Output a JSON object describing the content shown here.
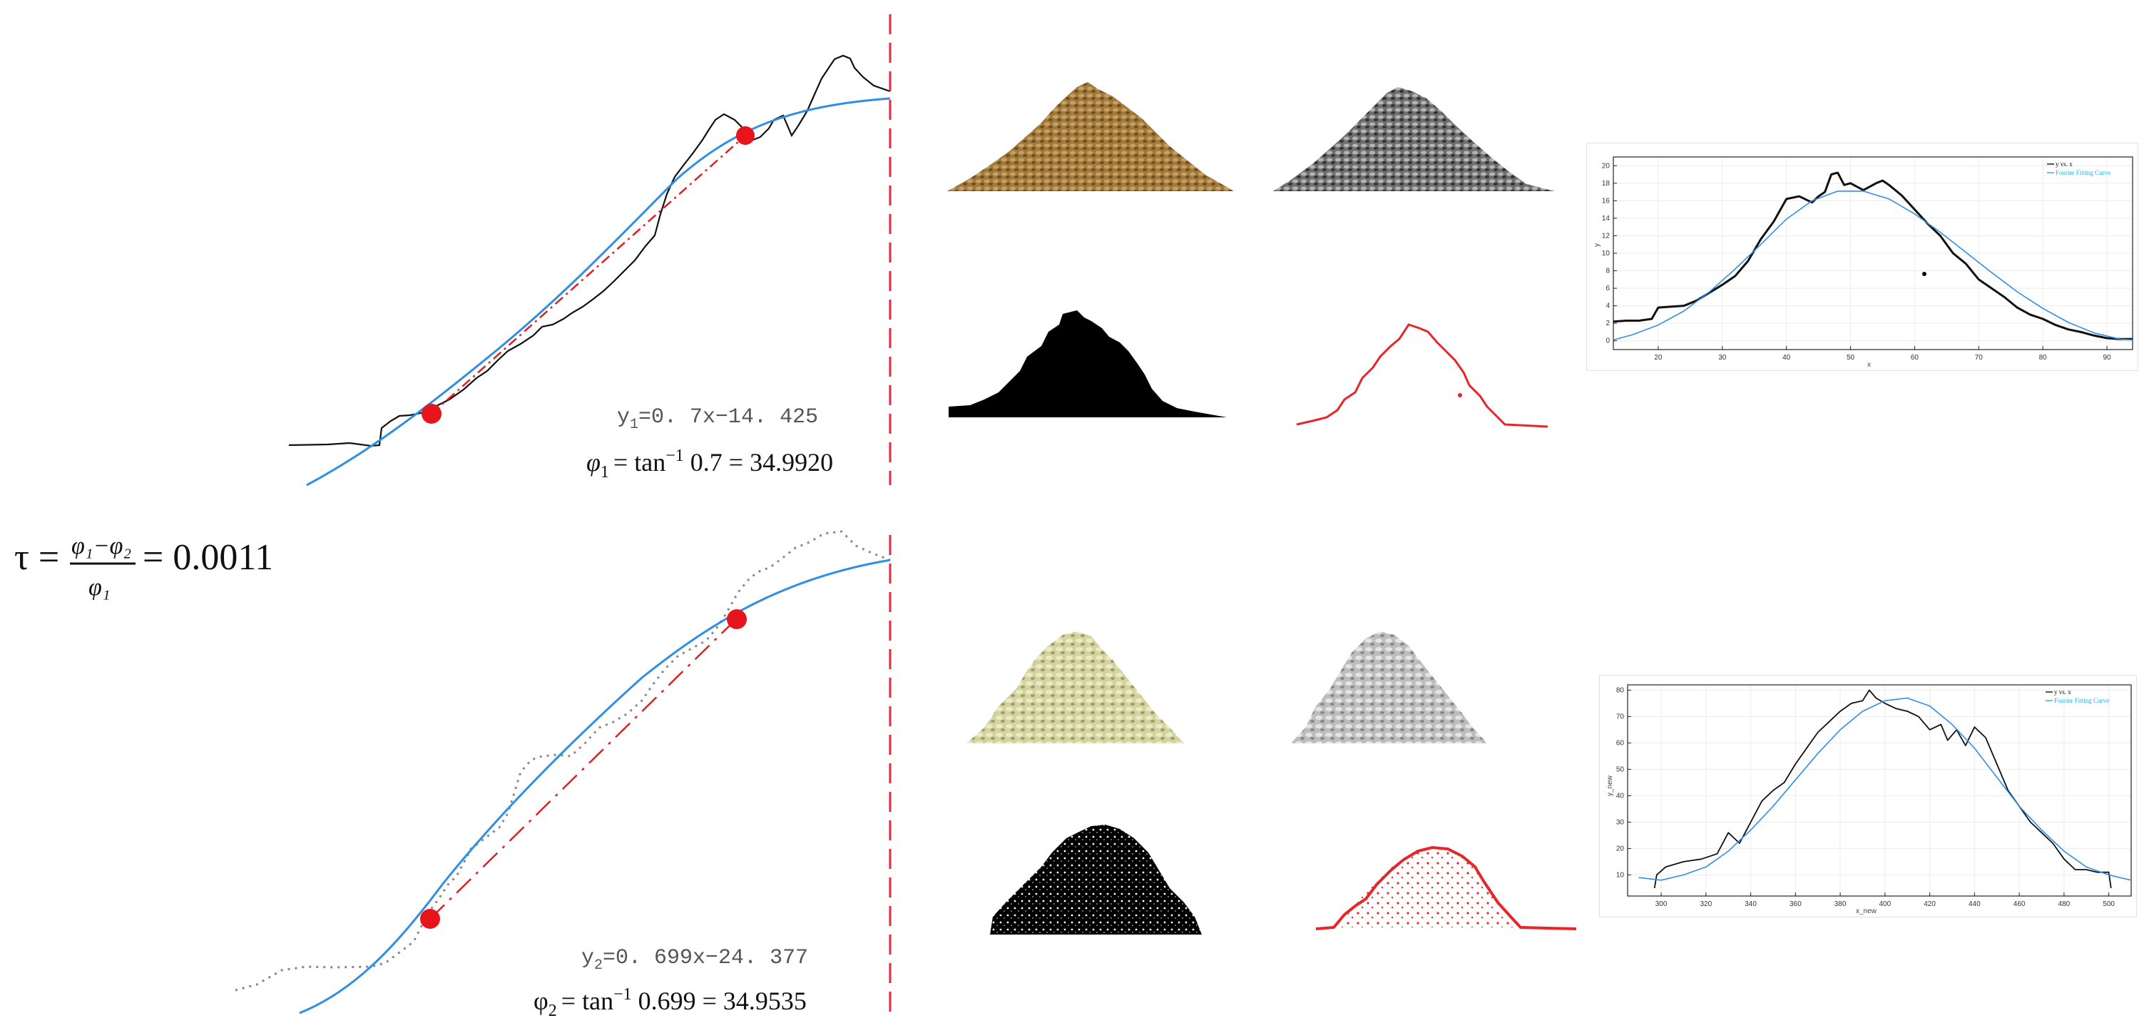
{
  "equations": {
    "top_fit": {
      "lhs": "y",
      "sub": "1",
      "rhs": "=0. 7x−14. 425"
    },
    "top_angle": {
      "phi": "φ",
      "sub": "1",
      "rhs": "= tan",
      "sup": "−1",
      "tail": " 0.7 = 34.9920"
    },
    "bottom_fit": {
      "lhs": "y",
      "sub": "2",
      "rhs": "=0. 699x−24. 377"
    },
    "bottom_angle": {
      "phi": "φ",
      "sub": "2",
      "rhs": "= tan",
      "sup": "−1",
      "tail": " 0.699 = 34.9535"
    },
    "tau": {
      "lhs": "τ =",
      "num": "φ₁−φ₂",
      "den": "φ₁",
      "rhs": "= 0.0011"
    }
  },
  "colors": {
    "fit_curve": "#2f8fe6",
    "profile": "#111111",
    "tangent_line": "#e02020",
    "points": "#e8141b",
    "divider": "#e8283a",
    "pile_real": "#a07a3c",
    "pile_real_gray": "#6f6f6f",
    "pile_sim": "#d4d3a0",
    "pile_sim_gray": "#bdbdbd",
    "edge_red": "#e8262a",
    "legend_fit": "#2ab0e8"
  },
  "icons": [
    "photo-pile",
    "binary-silhouette",
    "edge-outline"
  ],
  "chart_data": [
    {
      "type": "line",
      "title": "",
      "xlabel": "x",
      "ylabel": "y",
      "xlim": [
        13,
        94
      ],
      "ylim": [
        -1,
        21
      ],
      "xticks": [
        "20",
        "30",
        "40",
        "50",
        "60",
        "70",
        "80",
        "90"
      ],
      "yticks": [
        "0",
        "2",
        "4",
        "6",
        "8",
        "10",
        "12",
        "14",
        "16",
        "18",
        "20"
      ],
      "grid": true,
      "legend": "top-right",
      "series": [
        {
          "name": "y vs. x",
          "x": [
            13,
            15,
            17,
            19,
            20,
            22,
            24,
            26,
            28,
            30,
            32,
            34,
            36,
            38,
            40,
            42,
            44,
            45,
            46,
            47,
            48,
            49,
            50,
            52,
            54,
            55,
            56,
            58,
            60,
            62,
            64,
            66,
            68,
            70,
            72,
            74,
            76,
            78,
            80,
            82,
            84,
            86,
            88,
            90,
            92,
            94
          ],
          "values": [
            2.2,
            2.3,
            2.3,
            2.5,
            3.8,
            3.9,
            4.0,
            4.6,
            5.5,
            6.4,
            7.4,
            9.1,
            11.6,
            13.6,
            16.2,
            16.5,
            15.8,
            16.5,
            17.0,
            19.0,
            19.2,
            17.8,
            18.0,
            17.2,
            18.0,
            18.3,
            17.8,
            16.6,
            15.0,
            13.4,
            12.0,
            10.0,
            8.8,
            7.0,
            6.0,
            5.0,
            3.8,
            3.0,
            2.5,
            1.8,
            1.3,
            1.0,
            0.6,
            0.3,
            0.2,
            0.2
          ]
        },
        {
          "name": "Fourier Fitting Curve",
          "x": [
            13,
            16,
            20,
            24,
            28,
            32,
            36,
            40,
            44,
            48,
            52,
            56,
            60,
            64,
            68,
            72,
            76,
            80,
            84,
            88,
            92,
            94
          ],
          "values": [
            0.1,
            0.7,
            1.8,
            3.4,
            5.6,
            8.2,
            11.0,
            13.9,
            16.0,
            17.1,
            17.1,
            16.2,
            14.5,
            12.4,
            10.1,
            7.8,
            5.6,
            3.7,
            2.1,
            0.9,
            0.2,
            0.1
          ]
        }
      ]
    },
    {
      "type": "line",
      "title": "",
      "xlabel": "x_new",
      "ylabel": "y_new",
      "xlim": [
        285,
        510
      ],
      "ylim": [
        2,
        82
      ],
      "xticks": [
        "300",
        "320",
        "340",
        "360",
        "380",
        "400",
        "420",
        "440",
        "460",
        "480",
        "500"
      ],
      "yticks": [
        "10",
        "20",
        "30",
        "40",
        "50",
        "60",
        "70",
        "80"
      ],
      "grid": true,
      "legend": "top-right",
      "series": [
        {
          "name": "y vs. x",
          "x": [
            297,
            298,
            302,
            310,
            318,
            325,
            330,
            335,
            340,
            345,
            350,
            355,
            360,
            365,
            370,
            375,
            380,
            385,
            390,
            393,
            396,
            400,
            405,
            410,
            415,
            420,
            425,
            428,
            432,
            436,
            440,
            445,
            450,
            455,
            460,
            465,
            470,
            475,
            480,
            485,
            490,
            495,
            500,
            501
          ],
          "values": [
            5,
            10,
            13,
            15,
            16,
            18,
            26,
            22,
            30,
            38,
            42,
            45,
            52,
            58,
            64,
            68,
            72,
            75,
            76,
            80,
            77,
            75,
            73,
            72,
            70,
            65,
            67,
            61,
            65,
            59,
            66,
            62,
            52,
            42,
            36,
            30,
            26,
            22,
            16,
            12,
            12,
            11,
            11,
            5
          ]
        },
        {
          "name": "Fourier Fitting Curve",
          "x": [
            290,
            300,
            310,
            320,
            330,
            340,
            350,
            360,
            370,
            380,
            390,
            400,
            410,
            420,
            430,
            440,
            450,
            460,
            470,
            480,
            490,
            500,
            510
          ],
          "values": [
            9,
            8,
            10,
            13,
            19,
            27,
            36,
            46,
            56,
            65,
            72,
            76,
            77,
            74,
            67,
            58,
            47,
            36,
            27,
            19,
            13,
            10,
            8
          ]
        }
      ]
    }
  ]
}
